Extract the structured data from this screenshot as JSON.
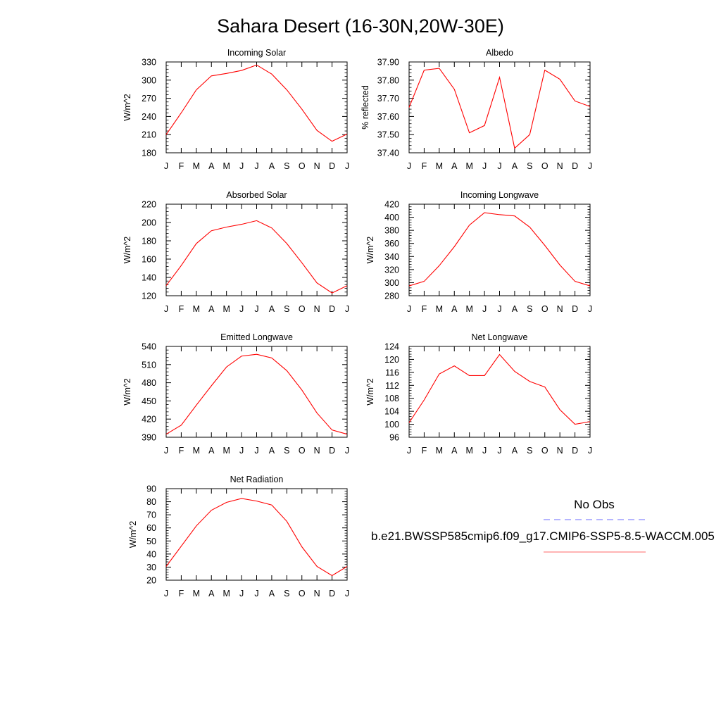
{
  "page": {
    "title": "Sahara Desert (16-30N,20W-30E)"
  },
  "legend": {
    "entries": [
      {
        "label": "No Obs",
        "style": "dashed",
        "color": "#6b6bff"
      },
      {
        "label": "b.e21.BWSSP585cmip6.f09_g17.CMIP6-SSP5-8.5-WACCM.005",
        "style": "solid",
        "color": "#ff3b3b"
      }
    ]
  },
  "chart_data": [
    {
      "type": "line",
      "title": "Incoming Solar",
      "xlabel": "",
      "ylabel": "W/m^2",
      "categories": [
        "J",
        "F",
        "M",
        "A",
        "M",
        "J",
        "J",
        "A",
        "S",
        "O",
        "N",
        "D",
        "J"
      ],
      "ylim": [
        180,
        330
      ],
      "yticks": [
        180,
        210,
        240,
        270,
        300,
        330
      ],
      "series": [
        {
          "color": "#ff0000",
          "values": [
            210,
            246,
            284,
            307,
            311,
            316,
            325,
            310,
            284,
            252,
            217,
            199,
            211
          ]
        }
      ]
    },
    {
      "type": "line",
      "title": "Albedo",
      "xlabel": "",
      "ylabel": "% reflected",
      "categories": [
        "J",
        "F",
        "M",
        "A",
        "M",
        "J",
        "J",
        "A",
        "S",
        "O",
        "N",
        "D",
        "J"
      ],
      "ylim": [
        37.4,
        37.9
      ],
      "yticks": [
        "37.40",
        "37.50",
        "37.60",
        "37.70",
        "37.80",
        "37.90"
      ],
      "series": [
        {
          "color": "#ff0000",
          "values": [
            37.65,
            37.855,
            37.865,
            37.75,
            37.51,
            37.55,
            37.815,
            37.425,
            37.5,
            37.855,
            37.805,
            37.685,
            37.655
          ]
        }
      ]
    },
    {
      "type": "line",
      "title": "Absorbed Solar",
      "xlabel": "",
      "ylabel": "W/m^2",
      "categories": [
        "J",
        "F",
        "M",
        "A",
        "M",
        "J",
        "J",
        "A",
        "S",
        "O",
        "N",
        "D",
        "J"
      ],
      "ylim": [
        120,
        220
      ],
      "yticks": [
        120,
        140,
        160,
        180,
        200,
        220
      ],
      "series": [
        {
          "color": "#ff0000",
          "values": [
            131,
            153,
            177,
            191,
            195,
            198,
            202,
            194,
            177,
            156,
            134,
            123,
            131
          ]
        }
      ]
    },
    {
      "type": "line",
      "title": "Incoming Longwave",
      "xlabel": "",
      "ylabel": "W/m^2",
      "categories": [
        "J",
        "F",
        "M",
        "A",
        "M",
        "J",
        "J",
        "A",
        "S",
        "O",
        "N",
        "D",
        "J"
      ],
      "ylim": [
        280,
        420
      ],
      "yticks": [
        280,
        300,
        320,
        340,
        360,
        380,
        400,
        420
      ],
      "series": [
        {
          "color": "#ff0000",
          "values": [
            295,
            302,
            326,
            355,
            388,
            407,
            404,
            402,
            385,
            357,
            327,
            302,
            295
          ]
        }
      ]
    },
    {
      "type": "line",
      "title": "Emitted Longwave",
      "xlabel": "",
      "ylabel": "W/m^2",
      "categories": [
        "J",
        "F",
        "M",
        "A",
        "M",
        "J",
        "J",
        "A",
        "S",
        "O",
        "N",
        "D",
        "J"
      ],
      "ylim": [
        390,
        540
      ],
      "yticks": [
        390,
        420,
        450,
        480,
        510,
        540
      ],
      "series": [
        {
          "color": "#ff0000",
          "values": [
            395,
            410,
            443,
            475,
            506,
            524,
            527,
            521,
            500,
            468,
            430,
            402,
            395
          ]
        }
      ]
    },
    {
      "type": "line",
      "title": "Net Longwave",
      "xlabel": "",
      "ylabel": "W/m^2",
      "categories": [
        "J",
        "F",
        "M",
        "A",
        "M",
        "J",
        "J",
        "A",
        "S",
        "O",
        "N",
        "D",
        "J"
      ],
      "ylim": [
        96,
        124
      ],
      "yticks": [
        96,
        100,
        104,
        108,
        112,
        116,
        120,
        124
      ],
      "series": [
        {
          "color": "#ff0000",
          "values": [
            100.5,
            107.5,
            115.5,
            118,
            115,
            115,
            121.5,
            116.3,
            113.2,
            111.5,
            104.5,
            100,
            100.8
          ]
        }
      ]
    },
    {
      "type": "line",
      "title": "Net Radiation",
      "xlabel": "",
      "ylabel": "W/m^2",
      "categories": [
        "J",
        "F",
        "M",
        "A",
        "M",
        "J",
        "J",
        "A",
        "S",
        "O",
        "N",
        "D",
        "J"
      ],
      "ylim": [
        20,
        90
      ],
      "yticks": [
        20,
        30,
        40,
        50,
        60,
        70,
        80,
        90
      ],
      "series": [
        {
          "color": "#ff0000",
          "values": [
            30.5,
            46,
            61.5,
            73.5,
            79.5,
            82.5,
            80.5,
            77.5,
            65,
            45.5,
            30.5,
            23.5,
            30.5
          ]
        }
      ]
    }
  ]
}
